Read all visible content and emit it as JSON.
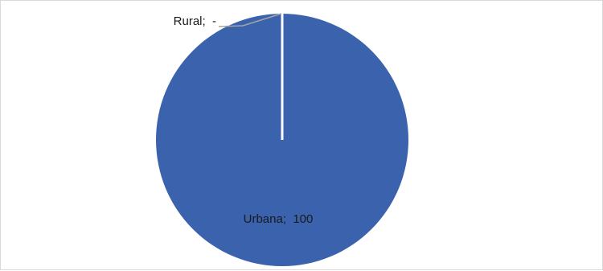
{
  "chart_data": {
    "type": "pie",
    "title": "",
    "slices": [
      {
        "category": "Urbana",
        "value": 100,
        "value_text": "100",
        "color": "#3A62AD"
      },
      {
        "category": "Rural",
        "value": 0,
        "value_text": "-",
        "color": "#A5A5A5"
      }
    ],
    "label_separator": "; ",
    "slice_border_color": "#ffffff",
    "leader_line_color": "#A5A5A5",
    "legend": "none"
  }
}
